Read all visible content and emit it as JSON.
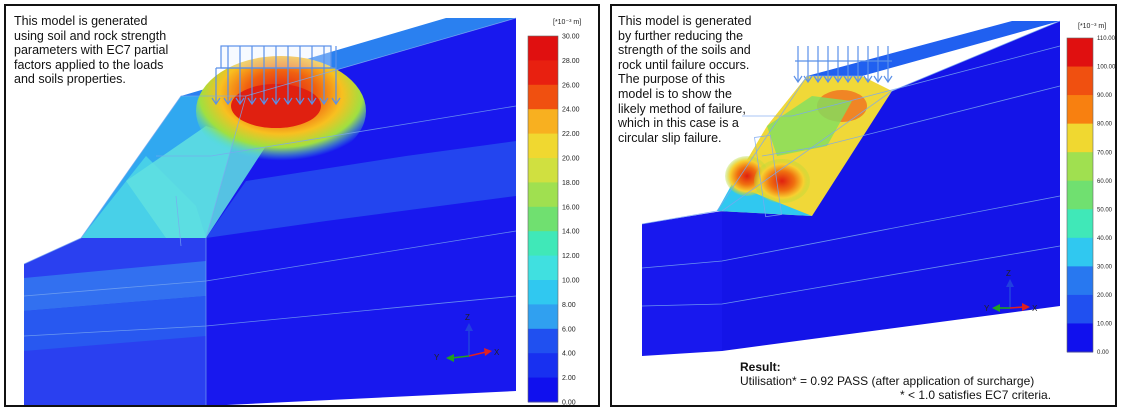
{
  "panels": [
    {
      "description_lines": [
        "This model is generated",
        "using soil and rock strength",
        "parameters with EC7 partial",
        "factors applied to the loads",
        "and soils properties."
      ],
      "colorbar": {
        "unit": "[*10⁻³ m]",
        "ticks": [
          "30.00",
          "28.00",
          "26.00",
          "24.00",
          "22.00",
          "20.00",
          "18.00",
          "16.00",
          "14.00",
          "12.00",
          "10.00",
          "8.00",
          "6.00",
          "4.00",
          "2.00",
          "0.00"
        ]
      },
      "axes": {
        "z": "Z",
        "y": "Y",
        "x": "X"
      }
    },
    {
      "description_lines": [
        "This model is generated",
        "by further reducing the",
        "strength of the soils and",
        "rock until failure occurs.",
        "The purpose of this",
        "model is to show the",
        "likely method of failure,",
        "which in this case is a",
        "circular slip failure."
      ],
      "colorbar": {
        "unit": "[*10⁻³ m]",
        "ticks": [
          "110.00",
          "100.00",
          "90.00",
          "80.00",
          "70.00",
          "60.00",
          "50.00",
          "40.00",
          "30.00",
          "20.00",
          "10.00",
          "0.00"
        ]
      },
      "axes": {
        "z": "Z",
        "y": "Y",
        "x": "X"
      },
      "result": {
        "title": "Result:",
        "line": "Utilisation* = 0.92 PASS (after application of surcharge)",
        "note": "* < 1.0 satisfies EC7 criteria."
      }
    }
  ],
  "colors": {
    "scale_bottom": "#1010ee",
    "scale_top": "#ee1010",
    "frame": "#111111"
  }
}
